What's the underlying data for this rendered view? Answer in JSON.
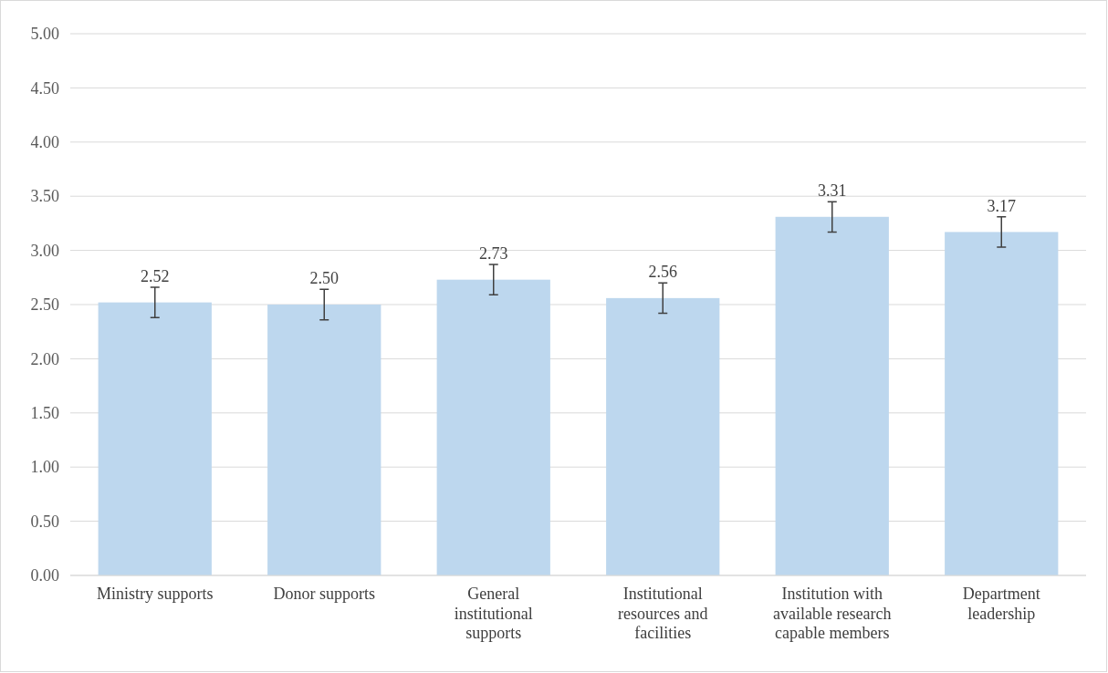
{
  "chart_data": {
    "type": "bar",
    "categories": [
      "Ministry supports",
      "Donor supports",
      "General institutional supports",
      "Institutional resources and facilities",
      "Institution with available research capable members",
      "Department leadership"
    ],
    "values": [
      2.52,
      2.5,
      2.73,
      2.56,
      3.31,
      3.17
    ],
    "errors": [
      0.14,
      0.14,
      0.14,
      0.14,
      0.14,
      0.14
    ],
    "color": "#bdd7ee",
    "ylim": [
      0,
      5
    ],
    "yticks": [
      {
        "value": 0,
        "label": "0.00"
      },
      {
        "value": 0.5,
        "label": "0.50"
      },
      {
        "value": 1,
        "label": "1.00"
      },
      {
        "value": 1.5,
        "label": "1.50"
      },
      {
        "value": 2,
        "label": "2.00"
      },
      {
        "value": 2.5,
        "label": "2.50"
      },
      {
        "value": 3,
        "label": "3.00"
      },
      {
        "value": 3.5,
        "label": "3.50"
      },
      {
        "value": 4,
        "label": "4.00"
      },
      {
        "value": 4.5,
        "label": "4.50"
      },
      {
        "value": 5,
        "label": "5.00"
      }
    ],
    "value_labels": [
      "2.52",
      "2.50",
      "2.73",
      "2.56",
      "3.31",
      "3.17"
    ],
    "grid": "y"
  }
}
